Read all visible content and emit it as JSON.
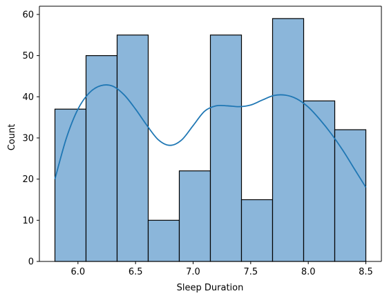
{
  "chart_data": {
    "type": "bar",
    "title": "",
    "xlabel": "Sleep Duration",
    "ylabel": "Count",
    "xlim": [
      5.665,
      8.635
    ],
    "ylim": [
      0,
      62
    ],
    "bin_edges": [
      5.8,
      6.07,
      6.34,
      6.61,
      6.88,
      7.15,
      7.42,
      7.69,
      7.96,
      8.23,
      8.5
    ],
    "values": [
      37,
      50,
      55,
      10,
      22,
      55,
      15,
      59,
      39,
      32
    ],
    "x_ticks": [
      6.0,
      6.5,
      7.0,
      7.5,
      8.0,
      8.5
    ],
    "x_tick_labels": [
      "6.0",
      "6.5",
      "7.0",
      "7.5",
      "8.0",
      "8.5"
    ],
    "y_ticks": [
      0,
      10,
      20,
      30,
      40,
      50,
      60
    ],
    "y_tick_labels": [
      "0",
      "10",
      "20",
      "30",
      "40",
      "50",
      "60"
    ],
    "kde": {
      "x": [
        5.8,
        5.9,
        6.0,
        6.1,
        6.2,
        6.3,
        6.4,
        6.5,
        6.6,
        6.7,
        6.8,
        6.9,
        7.0,
        7.1,
        7.2,
        7.3,
        7.4,
        7.5,
        7.6,
        7.7,
        7.8,
        7.9,
        8.0,
        8.1,
        8.2,
        8.3,
        8.4,
        8.5
      ],
      "y": [
        20,
        30,
        37,
        41,
        42.7,
        42.6,
        40.5,
        37,
        33,
        29.5,
        28.2,
        29.5,
        33,
        36.5,
        37.8,
        37.8,
        37.6,
        38,
        39.2,
        40.3,
        40.4,
        39.5,
        37.5,
        34.5,
        31,
        27,
        22.5,
        18
      ]
    },
    "grid": false,
    "legend": "none",
    "colors": {
      "bar_fill": "#8bb6da",
      "bar_edge": "#000000",
      "kde_line": "#1f77b4"
    }
  }
}
